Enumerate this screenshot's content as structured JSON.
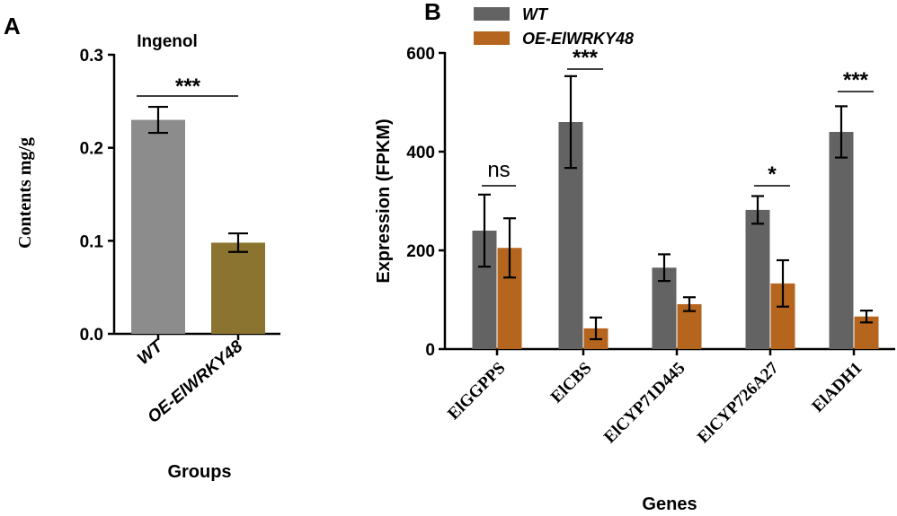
{
  "panels": {
    "a_letter": "A",
    "b_letter": "B"
  },
  "chart_data": [
    {
      "type": "bar",
      "panel": "A",
      "title": "Ingenol",
      "xlabel": "Groups",
      "ylabel": "Contents mg/g",
      "ylim": [
        0,
        0.3
      ],
      "yticks": [
        "0.0",
        "0.1",
        "0.2",
        "0.3"
      ],
      "categories": [
        "WT",
        "OE-ElWRKY48"
      ],
      "values": [
        0.23,
        0.098
      ],
      "errors": [
        0.014,
        0.01
      ],
      "colors": [
        "#8c8c8c",
        "#8b7430"
      ],
      "significance": [
        {
          "from": 0,
          "to": 1,
          "label": "***"
        }
      ],
      "grid": false
    },
    {
      "type": "bar",
      "panel": "B",
      "xlabel": "Genes",
      "ylabel": "Expression (FPKM)",
      "ylim": [
        0,
        600
      ],
      "yticks": [
        "0",
        "200",
        "400",
        "600"
      ],
      "categories": [
        "ElGGPPS",
        "ElCBS",
        "ElCYP71D445",
        "ElCYP726A27",
        "ElADH1"
      ],
      "series": [
        {
          "name": "WT",
          "color": "#636363",
          "values": [
            240,
            460,
            165,
            282,
            440
          ],
          "errors": [
            73,
            93,
            27,
            28,
            52
          ]
        },
        {
          "name": "OE-ElWRKY48",
          "color": "#b5651d",
          "values": [
            205,
            42,
            91,
            133,
            66
          ],
          "errors": [
            60,
            22,
            14,
            47,
            12
          ]
        }
      ],
      "significance": [
        "ns",
        "***",
        "",
        "*",
        "***"
      ],
      "legend": "top-left",
      "grid": false
    }
  ]
}
